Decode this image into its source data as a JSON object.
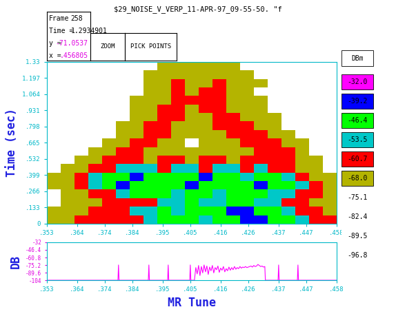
{
  "title": "$29_NOISE_V_VERP_11-APR-97_09-55-50. \"f",
  "info_panel": [
    {
      "label": "Frame",
      "value": "258"
    },
    {
      "label": "Time =",
      "value": "1.2934901"
    },
    {
      "label": "y =",
      "value": "-71.0537"
    },
    {
      "label": "x =",
      "value": ".456805"
    }
  ],
  "buttons": [
    "ZOOM",
    "PICK POINTS"
  ],
  "chart_data": [
    {
      "type": "heatmap",
      "y_label": "Time (sec)",
      "xlim": [
        0.353,
        0.458
      ],
      "ylim": [
        0,
        1.33
      ],
      "xticks": [
        {
          "value": 0.353,
          "label": ".353"
        },
        {
          "value": 0.364,
          "label": ".364"
        },
        {
          "value": 0.374,
          "label": ".374"
        },
        {
          "value": 0.384,
          "label": ".384"
        },
        {
          "value": 0.395,
          "label": ".395"
        },
        {
          "value": 0.405,
          "label": ".405"
        },
        {
          "value": 0.416,
          "label": ".416"
        },
        {
          "value": 0.426,
          "label": ".426"
        },
        {
          "value": 0.437,
          "label": ".437"
        },
        {
          "value": 0.447,
          "label": ".447"
        },
        {
          "value": 0.458,
          "label": ".458"
        }
      ],
      "yticks": [
        0,
        {
          "value": 0.133,
          "label": ".133"
        },
        {
          "value": 0.266,
          "label": ".266"
        },
        {
          "value": 0.399,
          "label": ".399"
        },
        {
          "value": 0.532,
          "label": ".532"
        },
        {
          "value": 0.665,
          "label": ".665"
        },
        {
          "value": 0.798,
          "label": ".798"
        },
        {
          "value": 0.931,
          "label": ".931"
        },
        1.064,
        1.197,
        1.33
      ],
      "x_edges": [
        0.353,
        0.358,
        0.363,
        0.368,
        0.373,
        0.378,
        0.383,
        0.388,
        0.393,
        0.398,
        0.403,
        0.408,
        0.413,
        0.418,
        0.423,
        0.428,
        0.433,
        0.438,
        0.443,
        0.448,
        0.453,
        0.458
      ],
      "y_edges": [
        0,
        0.07,
        0.14,
        0.21,
        0.28,
        0.35,
        0.42,
        0.49,
        0.56,
        0.63,
        0.7,
        0.77,
        0.84,
        0.91,
        0.98,
        1.05,
        1.12,
        1.19,
        1.26,
        1.33
      ],
      "cells": [
        [
          -65,
          -65,
          -58,
          -58,
          -58,
          -58,
          -58,
          -50,
          -43,
          -43,
          -43,
          -50,
          -43,
          -43,
          -36,
          -36,
          -43,
          -43,
          -50,
          -58,
          -58
        ],
        [
          -65,
          -65,
          -65,
          -58,
          -58,
          -58,
          -50,
          -50,
          -43,
          -50,
          -43,
          -43,
          -43,
          -36,
          -36,
          -43,
          -43,
          -50,
          -58,
          -58,
          -65
        ],
        [
          -80,
          -65,
          -65,
          -65,
          -58,
          -58,
          -58,
          -58,
          -50,
          -50,
          -43,
          -50,
          -50,
          -43,
          -43,
          -50,
          -50,
          -58,
          -58,
          -65,
          -65
        ],
        [
          -80,
          -65,
          -65,
          -58,
          -58,
          -50,
          -43,
          -43,
          -43,
          -50,
          -43,
          -43,
          -50,
          -43,
          -43,
          -43,
          -50,
          -50,
          -58,
          -58,
          -65
        ],
        [
          -65,
          -65,
          -58,
          -50,
          -43,
          -36,
          -43,
          -43,
          -43,
          -43,
          -36,
          -43,
          -43,
          -43,
          -43,
          -36,
          -43,
          -43,
          -50,
          -58,
          -65
        ],
        [
          -65,
          -65,
          -58,
          -50,
          -43,
          -43,
          -36,
          -43,
          -43,
          -43,
          -43,
          -36,
          -43,
          -43,
          -50,
          -43,
          -43,
          -50,
          -58,
          -65,
          -65
        ],
        [
          -80,
          -65,
          -65,
          -58,
          -58,
          -50,
          -50,
          -50,
          -58,
          -50,
          -50,
          -58,
          -50,
          -50,
          -58,
          -50,
          -58,
          -58,
          -65,
          -65,
          -80
        ],
        [
          -80,
          -80,
          -65,
          -65,
          -58,
          -58,
          -58,
          -65,
          -58,
          -58,
          -65,
          -58,
          -58,
          -65,
          -58,
          -58,
          -58,
          -58,
          -65,
          -65,
          -80
        ],
        [
          -80,
          -80,
          -80,
          -65,
          -65,
          -58,
          -58,
          -65,
          -65,
          -65,
          -65,
          -65,
          -65,
          -65,
          -65,
          -58,
          -58,
          -58,
          -65,
          -80,
          -80
        ],
        [
          -80,
          -80,
          -80,
          -80,
          -65,
          -65,
          -58,
          -58,
          -65,
          -65,
          -80,
          -65,
          -65,
          -65,
          -58,
          -58,
          -58,
          -65,
          -65,
          -80,
          -80
        ],
        [
          -80,
          -80,
          -80,
          -80,
          -80,
          -65,
          -65,
          -58,
          -58,
          -65,
          -65,
          -65,
          -65,
          -58,
          -58,
          -58,
          -65,
          -65,
          -80,
          -80,
          -80
        ],
        [
          -80,
          -80,
          -80,
          -80,
          -80,
          -65,
          -65,
          -58,
          -58,
          -65,
          -65,
          -65,
          -58,
          -58,
          -58,
          -65,
          -65,
          -80,
          -80,
          -80,
          -80
        ],
        [
          -80,
          -80,
          -80,
          -80,
          -80,
          -80,
          -65,
          -65,
          -58,
          -58,
          -65,
          -65,
          -58,
          -58,
          -65,
          -65,
          -65,
          -80,
          -80,
          -80,
          -80
        ],
        [
          -80,
          -80,
          -80,
          -80,
          -80,
          -80,
          -65,
          -65,
          -58,
          -58,
          -65,
          -58,
          -58,
          -65,
          -65,
          -65,
          -80,
          -80,
          -80,
          -80,
          -80
        ],
        [
          -80,
          -80,
          -80,
          -80,
          -80,
          -80,
          -65,
          -65,
          -65,
          -58,
          -58,
          -58,
          -58,
          -65,
          -65,
          -65,
          -80,
          -80,
          -80,
          -80,
          -80
        ],
        [
          -80,
          -80,
          -80,
          -80,
          -80,
          -80,
          -80,
          -65,
          -65,
          -58,
          -65,
          -58,
          -58,
          -65,
          -65,
          -80,
          -80,
          -80,
          -80,
          -80,
          -80
        ],
        [
          -80,
          -80,
          -80,
          -80,
          -80,
          -80,
          -80,
          -65,
          -65,
          -58,
          -65,
          -65,
          -58,
          -65,
          -65,
          -65,
          -80,
          -80,
          -80,
          -80,
          -80
        ],
        [
          -80,
          -80,
          -80,
          -80,
          -80,
          -80,
          -80,
          -65,
          -65,
          -65,
          -65,
          -65,
          -65,
          -65,
          -65,
          -80,
          -80,
          -80,
          -80,
          -80,
          -80
        ],
        [
          -80,
          -80,
          -80,
          -80,
          -80,
          -80,
          -80,
          -80,
          -65,
          -65,
          -65,
          -65,
          -65,
          -65,
          -80,
          -80,
          -80,
          -80,
          -80,
          -80,
          -80
        ]
      ],
      "colorbar": {
        "label": "DBm",
        "ticks": [
          {
            "value": -32,
            "label": "-32.0"
          },
          -39.2,
          -46.4,
          -53.5,
          -60.7,
          {
            "value": -68,
            "label": "-68.0"
          },
          -75.1,
          -82.4,
          -89.5,
          -96.8
        ],
        "colors": [
          "#ff00ff",
          "#0000ff",
          "#00ff00",
          "#00c8c8",
          "#ff0000",
          "#b4b400",
          "#ffffff",
          "#ffffff",
          "#ffffff",
          "#ffffff"
        ]
      }
    },
    {
      "type": "line",
      "x_label": "MR Tune",
      "y_label": "DB",
      "color": "#ff00ff",
      "xlim": [
        0.353,
        0.458
      ],
      "ylim": [
        -104,
        -32
      ],
      "xticks": [
        {
          "value": 0.353,
          "label": ".353"
        },
        {
          "value": 0.364,
          "label": ".364"
        },
        {
          "value": 0.374,
          "label": ".374"
        },
        {
          "value": 0.384,
          "label": ".384"
        },
        {
          "value": 0.395,
          "label": ".395"
        },
        {
          "value": 0.405,
          "label": ".405"
        },
        {
          "value": 0.416,
          "label": ".416"
        },
        {
          "value": 0.426,
          "label": ".426"
        },
        {
          "value": 0.437,
          "label": ".437"
        },
        {
          "value": 0.447,
          "label": ".447"
        },
        {
          "value": 0.458,
          "label": ".458"
        }
      ],
      "yticks": [
        -32,
        -46.4,
        -60.8,
        -75.2,
        -89.6,
        -104
      ],
      "x": [
        0.353,
        0.3788,
        0.379,
        0.3792,
        0.3898,
        0.39,
        0.3902,
        0.3968,
        0.397,
        0.3972,
        0.4048,
        0.405,
        0.4052,
        0.4065,
        0.407,
        0.4075,
        0.408,
        0.4085,
        0.409,
        0.4095,
        0.41,
        0.4105,
        0.411,
        0.4115,
        0.412,
        0.4125,
        0.413,
        0.4135,
        0.414,
        0.4145,
        0.415,
        0.4155,
        0.416,
        0.4165,
        0.417,
        0.4175,
        0.418,
        0.4185,
        0.419,
        0.4195,
        0.42,
        0.4205,
        0.421,
        0.4215,
        0.422,
        0.4225,
        0.423,
        0.4235,
        0.424,
        0.4245,
        0.425,
        0.4255,
        0.426,
        0.4265,
        0.427,
        0.4275,
        0.428,
        0.4285,
        0.429,
        0.4295,
        0.43,
        0.4305,
        0.431,
        0.4315,
        0.432,
        0.4322,
        0.4368,
        0.437,
        0.4372,
        0.4438,
        0.444,
        0.4442,
        0.458
      ],
      "values": [
        -104,
        -104,
        -75,
        -104,
        -104,
        -75,
        -104,
        -104,
        -75,
        -104,
        -104,
        -75,
        -104,
        -104,
        -80,
        -92,
        -76,
        -95,
        -78,
        -90,
        -75,
        -88,
        -77,
        -93,
        -79,
        -86,
        -76,
        -90,
        -80,
        -84,
        -77,
        -89,
        -81,
        -85,
        -78,
        -88,
        -82,
        -86,
        -79,
        -85,
        -80,
        -84,
        -78,
        -83,
        -80,
        -82,
        -78,
        -81,
        -79,
        -80,
        -78,
        -80,
        -79,
        -78,
        -77,
        -79,
        -76,
        -78,
        -77,
        -74,
        -76,
        -78,
        -77,
        -79,
        -78,
        -104,
        -104,
        -75,
        -104,
        -104,
        -75,
        -104,
        -104
      ]
    }
  ]
}
